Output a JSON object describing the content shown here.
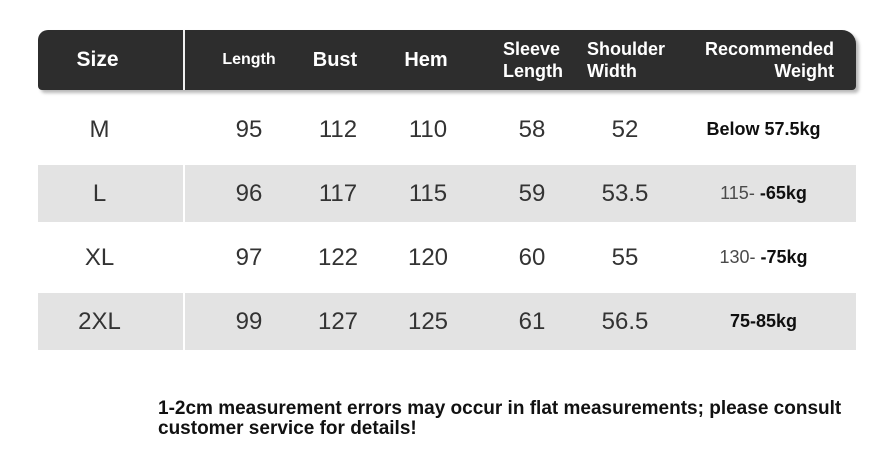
{
  "table": {
    "header": {
      "size": "Size",
      "length": "Length",
      "bust": "Bust",
      "hem": "Hem",
      "sleeve_line1": "Sleeve",
      "sleeve_line2": "Length",
      "shoulder_line1": "Shoulder",
      "shoulder_line2": "Width",
      "weight_line1": "Recommended",
      "weight_line2": "Weight"
    },
    "rows": [
      {
        "size": "M",
        "length": "95",
        "bust": "112",
        "hem": "110",
        "sleeve_length": "58",
        "shoulder_width": "52",
        "weight_prefix": "",
        "weight": "Below 57.5kg"
      },
      {
        "size": "L",
        "length": "96",
        "bust": "117",
        "hem": "115",
        "sleeve_length": "59",
        "shoulder_width": "53.5",
        "weight_prefix": "115-",
        "weight": "-65kg"
      },
      {
        "size": "XL",
        "length": "97",
        "bust": "122",
        "hem": "120",
        "sleeve_length": "60",
        "shoulder_width": "55",
        "weight_prefix": "130-",
        "weight": "-75kg"
      },
      {
        "size": "2XL",
        "length": "99",
        "bust": "127",
        "hem": "125",
        "sleeve_length": "61",
        "shoulder_width": "56.5",
        "weight_prefix": "",
        "weight": "75-85kg"
      }
    ]
  },
  "footer_note": {
    "line1": "1-2cm measurement errors may occur in flat measurements; please consult",
    "line2": "customer service for details!"
  },
  "colors": {
    "header_bg": "#2d2d2d",
    "header_text": "#ffffff",
    "alt_row_bg": "#e3e3e3",
    "value_text": "#333333",
    "weight_text": "#0f0f0f",
    "weight_prefix_text": "#4a4a4a"
  }
}
